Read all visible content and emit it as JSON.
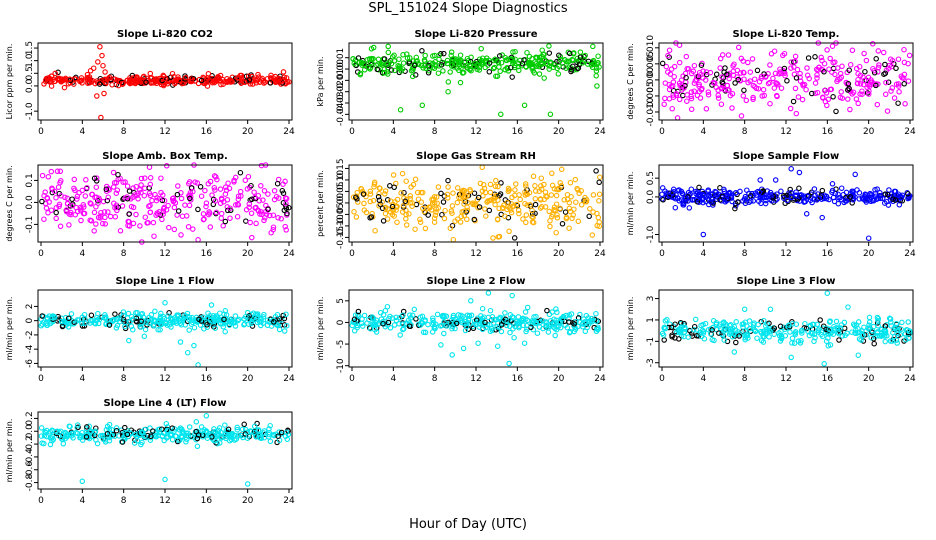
{
  "figure": {
    "title": "SPL_151024  Slope Diagnostics",
    "xlabel": "Hour of Day (UTC)"
  },
  "chart_data": [
    {
      "type": "scatter",
      "title": "Slope Li-820 CO2",
      "ylabel": "Licor ppm per min.",
      "xlim": [
        0,
        24
      ],
      "xticks": [
        "0",
        "4",
        "8",
        "12",
        "16",
        "20",
        "24"
      ],
      "ylim": [
        -1.35,
        1.7
      ],
      "yticks": [
        {
          "v": -1.0,
          "t": "-1.0"
        },
        {
          "v": 0.0,
          "t": "0.0"
        },
        {
          "v": 0.5,
          "t": "0.5"
        },
        {
          "v": 1.0,
          "t": "1.0"
        },
        {
          "v": 1.5,
          "t": "1.5"
        }
      ],
      "color": "#ff0000",
      "center": 0.22,
      "spread": 0.09,
      "outliers": [
        [
          5.7,
          1.55
        ],
        [
          5.9,
          1.2
        ],
        [
          5.5,
          0.95
        ],
        [
          6.0,
          0.8
        ],
        [
          5.1,
          0.7
        ],
        [
          4.8,
          0.6
        ],
        [
          6.2,
          0.55
        ],
        [
          5.4,
          -0.4
        ],
        [
          6.1,
          -0.3
        ],
        [
          5.8,
          -1.25
        ],
        [
          4.5,
          0.45
        ],
        [
          16.2,
          0.48
        ],
        [
          21.0,
          0.45
        ]
      ],
      "seed": 11
    },
    {
      "type": "scatter",
      "title": "Slope Li-820 Pressure",
      "ylabel": "kPa per min.",
      "xlim": [
        0,
        24
      ],
      "xticks": [
        "0",
        "4",
        "8",
        "12",
        "16",
        "20",
        "24"
      ],
      "ylim": [
        -0.045,
        0.023
      ],
      "yticks": [
        {
          "v": -0.04,
          "t": "-0.04"
        },
        {
          "v": -0.03,
          "t": "-0.03"
        },
        {
          "v": -0.02,
          "t": "-0.02"
        },
        {
          "v": -0.01,
          "t": "-0.01"
        },
        {
          "v": 0.0,
          "t": "0.00"
        },
        {
          "v": 0.01,
          "t": "0.01"
        }
      ],
      "color": "#00cc00",
      "center": 0.005,
      "spread": 0.0045,
      "outliers": [
        [
          0.8,
          -0.005
        ],
        [
          2.1,
          0.019
        ],
        [
          3.5,
          0.02
        ],
        [
          4.7,
          -0.036
        ],
        [
          6.8,
          -0.032
        ],
        [
          8.0,
          0.012
        ],
        [
          9.3,
          -0.02
        ],
        [
          12.5,
          0.018
        ],
        [
          14.4,
          -0.04
        ],
        [
          16.7,
          -0.032
        ],
        [
          19.2,
          -0.04
        ],
        [
          22.1,
          0.015
        ],
        [
          23.3,
          0.02
        ],
        [
          23.7,
          -0.015
        ],
        [
          10.5,
          -0.012
        ],
        [
          18.6,
          -0.008
        ]
      ],
      "seed": 23
    },
    {
      "type": "scatter",
      "title": "Slope Li-820 Temp.",
      "ylabel": "degrees C per min.",
      "xlim": [
        0,
        24
      ],
      "xticks": [
        "0",
        "4",
        "8",
        "12",
        "16",
        "20",
        "24"
      ],
      "ylim": [
        -0.0125,
        0.0115
      ],
      "yticks": [
        {
          "v": -0.01,
          "t": "-0.010"
        },
        {
          "v": -0.005,
          "t": "-0.005"
        },
        {
          "v": 0.0,
          "t": "0.000"
        },
        {
          "v": 0.005,
          "t": "0.005"
        },
        {
          "v": 0.01,
          "t": "0.010"
        }
      ],
      "color": "#ff00ff",
      "center": 0.0,
      "spread": 0.0045,
      "outliers": [
        [
          1.7,
          0.0108
        ],
        [
          13.0,
          -0.0105
        ],
        [
          16.5,
          0.0105
        ],
        [
          4.3,
          -0.009
        ]
      ],
      "seed": 37
    },
    {
      "type": "scatter",
      "title": "Slope Amb. Box Temp.",
      "ylabel": "degrees C per min.",
      "xlim": [
        0,
        24
      ],
      "xticks": [
        "0",
        "4",
        "8",
        "12",
        "16",
        "20",
        "24"
      ],
      "ylim": [
        -0.18,
        0.17
      ],
      "yticks": [
        {
          "v": -0.1,
          "t": "-0.1"
        },
        {
          "v": 0.0,
          "t": "0.0"
        },
        {
          "v": 0.1,
          "t": "0.1"
        }
      ],
      "color": "#ff00ff",
      "center": 0.0,
      "spread": 0.065,
      "outliers": [
        [
          1.0,
          0.14
        ],
        [
          15.2,
          -0.17
        ],
        [
          10.5,
          0.16
        ],
        [
          20.4,
          -0.16
        ]
      ],
      "seed": 41
    },
    {
      "type": "scatter",
      "title": "Slope Gas Stream RH",
      "ylabel": "percent per min.",
      "xlim": [
        0,
        24
      ],
      "xticks": [
        "0",
        "4",
        "8",
        "12",
        "16",
        "20",
        "24"
      ],
      "ylim": [
        -0.17,
        0.165
      ],
      "yticks": [
        {
          "v": -0.15,
          "t": "-0.15"
        },
        {
          "v": -0.1,
          "t": "-0.10"
        },
        {
          "v": -0.05,
          "t": "-0.05"
        },
        {
          "v": 0.0,
          "t": "0.00"
        },
        {
          "v": 0.05,
          "t": "0.05"
        },
        {
          "v": 0.1,
          "t": "0.10"
        },
        {
          "v": 0.15,
          "t": "0.15"
        }
      ],
      "color": "#ffb000",
      "center": 0.0,
      "spread": 0.06,
      "outliers": [
        [
          9.8,
          -0.16
        ],
        [
          12.6,
          0.155
        ]
      ],
      "seed": 53
    },
    {
      "type": "scatter",
      "title": "Slope Sample Flow",
      "ylabel": "ml/min per min.",
      "xlim": [
        0,
        24
      ],
      "xticks": [
        "0",
        "4",
        "8",
        "12",
        "16",
        "20",
        "24"
      ],
      "ylim": [
        -1.2,
        0.85
      ],
      "yticks": [
        {
          "v": -1.0,
          "t": "-1.0"
        },
        {
          "v": 0.0,
          "t": "0.0"
        },
        {
          "v": 0.5,
          "t": "0.5"
        }
      ],
      "color": "#0000ff",
      "center": 0.0,
      "spread": 0.09,
      "outliers": [
        [
          4.0,
          -1.0
        ],
        [
          20.0,
          -1.1
        ],
        [
          12.5,
          0.75
        ],
        [
          13.3,
          0.65
        ],
        [
          15.5,
          -0.55
        ],
        [
          18.7,
          0.6
        ],
        [
          11.0,
          0.45
        ],
        [
          14.0,
          -0.45
        ],
        [
          9.5,
          0.45
        ],
        [
          16.5,
          0.35
        ]
      ],
      "seed": 67
    },
    {
      "type": "scatter",
      "title": "Slope Line 1 Flow",
      "ylabel": "ml/min per min.",
      "xlim": [
        0,
        24
      ],
      "xticks": [
        "0",
        "4",
        "8",
        "12",
        "16",
        "20",
        "24"
      ],
      "ylim": [
        -6.5,
        4.3
      ],
      "yticks": [
        {
          "v": -6,
          "t": "-6"
        },
        {
          "v": -4,
          "t": "-4"
        },
        {
          "v": -2,
          "t": "-2"
        },
        {
          "v": 0,
          "t": "0"
        },
        {
          "v": 2,
          "t": "2"
        }
      ],
      "color": "#00e5ee",
      "center": 0.0,
      "spread": 0.5,
      "outliers": [
        [
          14.2,
          -4.5
        ],
        [
          14.8,
          -3.5
        ],
        [
          13.5,
          -3.0
        ],
        [
          15.2,
          -6.2
        ],
        [
          12.0,
          2.5
        ],
        [
          8.5,
          -2.8
        ],
        [
          16.5,
          2.2
        ],
        [
          10.0,
          -2.2
        ]
      ],
      "seed": 71
    },
    {
      "type": "scatter",
      "title": "Slope Line 2 Flow",
      "ylabel": "ml/min per min.",
      "xlim": [
        0,
        24
      ],
      "xticks": [
        "0",
        "4",
        "8",
        "12",
        "16",
        "20",
        "24"
      ],
      "ylim": [
        -10.3,
        7.5
      ],
      "yticks": [
        {
          "v": -10,
          "t": "-10"
        },
        {
          "v": -5,
          "t": "-5"
        },
        {
          "v": 0,
          "t": "0"
        },
        {
          "v": 5,
          "t": "5"
        }
      ],
      "color": "#00e5ee",
      "center": 0.0,
      "spread": 1.2,
      "outliers": [
        [
          13.2,
          6.8
        ],
        [
          15.5,
          6.2
        ],
        [
          12.2,
          -4.8
        ],
        [
          14.1,
          -5.5
        ],
        [
          10.8,
          -6.0
        ],
        [
          15.2,
          -9.5
        ],
        [
          9.7,
          -7.5
        ],
        [
          16.7,
          -4.8
        ],
        [
          11.5,
          5.0
        ],
        [
          8.6,
          -5.2
        ]
      ],
      "seed": 83
    },
    {
      "type": "scatter",
      "title": "Slope Line 3 Flow",
      "ylabel": "ml/min per min.",
      "xlim": [
        0,
        24
      ],
      "xticks": [
        "0",
        "4",
        "8",
        "12",
        "16",
        "20",
        "24"
      ],
      "ylim": [
        -3.4,
        3.8
      ],
      "yticks": [
        {
          "v": -3,
          "t": "-3"
        },
        {
          "v": -1,
          "t": "-1"
        },
        {
          "v": 1,
          "t": "1"
        },
        {
          "v": 3,
          "t": "3"
        }
      ],
      "color": "#00e5ee",
      "center": 0.0,
      "spread": 0.55,
      "outliers": [
        [
          16.0,
          3.5
        ],
        [
          15.7,
          -3.1
        ],
        [
          8.0,
          2.0
        ],
        [
          12.5,
          -2.5
        ],
        [
          19.0,
          -2.3
        ],
        [
          7.0,
          -2.0
        ],
        [
          10.5,
          2.0
        ],
        [
          18.0,
          2.2
        ]
      ],
      "seed": 97
    },
    {
      "type": "scatter",
      "title": "Slope Line 4 (LT) Flow",
      "ylabel": "ml/min per min.",
      "xlim": [
        0,
        24
      ],
      "xticks": [
        "0",
        "4",
        "8",
        "12",
        "16",
        "20",
        "24"
      ],
      "ylim": [
        -0.9,
        0.3
      ],
      "yticks": [
        {
          "v": -0.8,
          "t": "-0.8"
        },
        {
          "v": -0.6,
          "t": "-0.6"
        },
        {
          "v": -0.4,
          "t": "-0.4"
        },
        {
          "v": -0.2,
          "t": "-0.2"
        },
        {
          "v": 0.0,
          "t": "0.0"
        },
        {
          "v": 0.2,
          "t": "0.2"
        }
      ],
      "color": "#00e5ee",
      "center": -0.05,
      "spread": 0.06,
      "outliers": [
        [
          4.0,
          -0.78
        ],
        [
          12.0,
          -0.75
        ],
        [
          20.0,
          -0.82
        ],
        [
          16.0,
          0.24
        ]
      ],
      "seed": 101
    }
  ]
}
